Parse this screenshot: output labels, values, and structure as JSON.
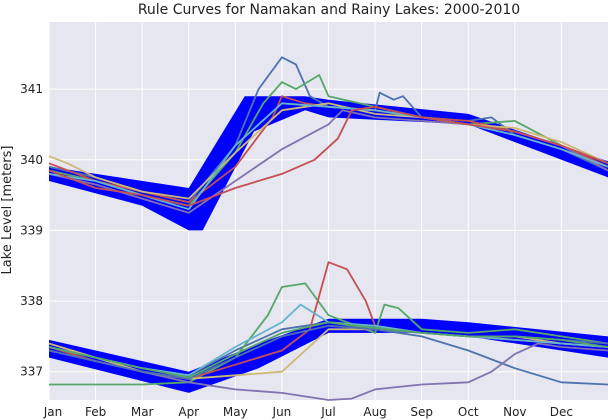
{
  "chart_data": {
    "type": "line",
    "title": "Rule Curves for Namakan and Rainy Lakes: 2000-2010",
    "xlabel": "",
    "ylabel": "Lake Level [meters]",
    "xlim": [
      0,
      12
    ],
    "ylim": [
      336.6,
      341.95
    ],
    "x_ticks": [
      {
        "label": "Jan",
        "x": 0
      },
      {
        "label": "Feb",
        "x": 1
      },
      {
        "label": "Mar",
        "x": 2
      },
      {
        "label": "Apr",
        "x": 3
      },
      {
        "label": "May",
        "x": 4
      },
      {
        "label": "Jun",
        "x": 5
      },
      {
        "label": "Jul",
        "x": 6
      },
      {
        "label": "Aug",
        "x": 7
      },
      {
        "label": "Sep",
        "x": 8
      },
      {
        "label": "Oct",
        "x": 9
      },
      {
        "label": "Nov",
        "x": 10
      },
      {
        "label": "Dec",
        "x": 11
      }
    ],
    "y_ticks": [
      {
        "label": "337",
        "y": 337
      },
      {
        "label": "338",
        "y": 338
      },
      {
        "label": "339",
        "y": 339
      },
      {
        "label": "340",
        "y": 340
      },
      {
        "label": "341",
        "y": 341
      }
    ],
    "grid": true,
    "background": "#e5e6ef",
    "band_color": "#0000ff",
    "bands": [
      {
        "upper": [
          [
            0,
            339.9
          ],
          [
            3,
            339.6
          ],
          [
            4.2,
            340.9
          ],
          [
            5.5,
            340.9
          ],
          [
            6,
            340.85
          ],
          [
            9,
            340.65
          ],
          [
            12,
            339.98
          ]
        ],
        "lower": [
          [
            0,
            339.7
          ],
          [
            2,
            339.35
          ],
          [
            3,
            339.0
          ],
          [
            3.3,
            339.0
          ],
          [
            4.4,
            340.4
          ],
          [
            5.5,
            340.7
          ],
          [
            6,
            340.6
          ],
          [
            9,
            340.5
          ],
          [
            12,
            339.75
          ]
        ]
      },
      {
        "upper": [
          [
            0,
            337.45
          ],
          [
            3,
            337.0
          ],
          [
            4.5,
            337.4
          ],
          [
            6,
            337.75
          ],
          [
            8,
            337.75
          ],
          [
            9,
            337.7
          ],
          [
            12,
            337.5
          ]
        ],
        "lower": [
          [
            0,
            337.2
          ],
          [
            3,
            336.7
          ],
          [
            4.5,
            337.05
          ],
          [
            6,
            337.55
          ],
          [
            8,
            337.55
          ],
          [
            9,
            337.5
          ],
          [
            12,
            337.2
          ]
        ]
      }
    ],
    "series": [
      {
        "color": "#4c72b0",
        "values": [
          [
            0,
            339.9
          ],
          [
            1,
            339.75
          ],
          [
            2,
            339.55
          ],
          [
            3,
            339.4
          ],
          [
            4,
            340.2
          ],
          [
            4.5,
            341.0
          ],
          [
            5,
            341.45
          ],
          [
            5.3,
            341.35
          ],
          [
            5.6,
            340.9
          ],
          [
            6,
            340.75
          ],
          [
            7,
            340.7
          ],
          [
            7.1,
            340.95
          ],
          [
            7.4,
            340.85
          ],
          [
            7.6,
            340.9
          ],
          [
            8,
            340.6
          ],
          [
            9,
            340.55
          ],
          [
            9.5,
            340.6
          ],
          [
            10,
            340.35
          ],
          [
            11,
            340.15
          ],
          [
            12,
            339.85
          ]
        ]
      },
      {
        "color": "#55a868",
        "values": [
          [
            0,
            339.85
          ],
          [
            1,
            339.7
          ],
          [
            2,
            339.5
          ],
          [
            3,
            339.35
          ],
          [
            4,
            340.1
          ],
          [
            4.6,
            340.8
          ],
          [
            5,
            341.1
          ],
          [
            5.3,
            341.0
          ],
          [
            5.8,
            341.2
          ],
          [
            6,
            340.9
          ],
          [
            7,
            340.75
          ],
          [
            8,
            340.6
          ],
          [
            9,
            340.5
          ],
          [
            10,
            340.55
          ],
          [
            11,
            340.2
          ],
          [
            12,
            339.9
          ]
        ]
      },
      {
        "color": "#c44e52",
        "values": [
          [
            0,
            339.95
          ],
          [
            1,
            339.7
          ],
          [
            2,
            339.55
          ],
          [
            3,
            339.4
          ],
          [
            4,
            339.9
          ],
          [
            4.8,
            340.6
          ],
          [
            5,
            340.9
          ],
          [
            5.5,
            340.8
          ],
          [
            6,
            340.75
          ],
          [
            7,
            340.7
          ],
          [
            8,
            340.6
          ],
          [
            9,
            340.55
          ],
          [
            10,
            340.4
          ],
          [
            11,
            340.2
          ],
          [
            12,
            339.9
          ]
        ]
      },
      {
        "color": "#8172b2",
        "values": [
          [
            0,
            339.8
          ],
          [
            1,
            339.65
          ],
          [
            2,
            339.45
          ],
          [
            3,
            339.25
          ],
          [
            4,
            339.7
          ],
          [
            5,
            340.15
          ],
          [
            6,
            340.5
          ],
          [
            6.3,
            340.7
          ],
          [
            7,
            340.6
          ],
          [
            8,
            340.55
          ],
          [
            9,
            340.5
          ],
          [
            10,
            340.4
          ],
          [
            11,
            340.2
          ],
          [
            12,
            339.85
          ]
        ]
      },
      {
        "color": "#ccb974",
        "values": [
          [
            0,
            340.05
          ],
          [
            0.4,
            339.95
          ],
          [
            1,
            339.75
          ],
          [
            2,
            339.55
          ],
          [
            3,
            339.45
          ],
          [
            4,
            340.1
          ],
          [
            5,
            340.7
          ],
          [
            6,
            340.8
          ],
          [
            7,
            340.65
          ],
          [
            8,
            340.6
          ],
          [
            9,
            340.5
          ],
          [
            10,
            340.45
          ],
          [
            11,
            340.25
          ],
          [
            12,
            339.95
          ]
        ]
      },
      {
        "color": "#64b5cd",
        "values": [
          [
            0,
            339.8
          ],
          [
            1,
            339.7
          ],
          [
            2,
            339.5
          ],
          [
            3,
            339.3
          ],
          [
            4,
            340.2
          ],
          [
            5,
            340.8
          ],
          [
            6,
            340.75
          ],
          [
            7,
            340.7
          ],
          [
            8,
            340.6
          ],
          [
            9,
            340.5
          ],
          [
            10,
            340.35
          ],
          [
            11,
            340.15
          ],
          [
            12,
            339.9
          ]
        ]
      },
      {
        "color": "#c44e52",
        "values": [
          [
            0,
            339.85
          ],
          [
            1,
            339.6
          ],
          [
            2,
            339.5
          ],
          [
            3,
            339.35
          ],
          [
            4,
            339.6
          ],
          [
            5,
            339.8
          ],
          [
            5.7,
            340.0
          ],
          [
            6.2,
            340.3
          ],
          [
            6.5,
            340.7
          ],
          [
            7,
            340.75
          ],
          [
            8,
            340.6
          ],
          [
            9,
            340.5
          ],
          [
            10,
            340.4
          ],
          [
            11,
            340.2
          ],
          [
            12,
            339.95
          ]
        ]
      },
      {
        "color": "#4c72b0",
        "values": [
          [
            0,
            337.35
          ],
          [
            1,
            337.2
          ],
          [
            2,
            337.05
          ],
          [
            3,
            336.95
          ],
          [
            4,
            337.3
          ],
          [
            5,
            337.6
          ],
          [
            6,
            337.7
          ],
          [
            7,
            337.6
          ],
          [
            8,
            337.5
          ],
          [
            9,
            337.3
          ],
          [
            10,
            337.05
          ],
          [
            11,
            336.85
          ],
          [
            12,
            336.82
          ]
        ]
      },
      {
        "color": "#55a868",
        "values": [
          [
            0,
            336.82
          ],
          [
            1,
            336.82
          ],
          [
            2,
            336.82
          ],
          [
            3,
            336.85
          ],
          [
            4,
            337.2
          ],
          [
            4.7,
            337.8
          ],
          [
            5,
            338.2
          ],
          [
            5.5,
            338.25
          ],
          [
            6,
            337.8
          ],
          [
            7,
            337.55
          ],
          [
            7.2,
            337.95
          ],
          [
            7.5,
            337.9
          ],
          [
            8,
            337.6
          ],
          [
            9,
            337.55
          ],
          [
            10,
            337.6
          ],
          [
            11,
            337.5
          ],
          [
            12,
            337.4
          ]
        ]
      },
      {
        "color": "#c44e52",
        "values": [
          [
            0,
            337.35
          ],
          [
            1,
            337.15
          ],
          [
            2,
            337.0
          ],
          [
            3,
            336.9
          ],
          [
            4,
            337.1
          ],
          [
            5,
            337.3
          ],
          [
            5.6,
            337.6
          ],
          [
            6,
            338.55
          ],
          [
            6.4,
            338.45
          ],
          [
            6.8,
            338.0
          ],
          [
            7,
            337.65
          ],
          [
            8,
            337.55
          ],
          [
            9,
            337.5
          ],
          [
            10,
            337.45
          ],
          [
            11,
            337.4
          ],
          [
            12,
            337.35
          ]
        ]
      },
      {
        "color": "#8172b2",
        "values": [
          [
            0,
            337.3
          ],
          [
            1,
            337.15
          ],
          [
            2,
            337.0
          ],
          [
            3,
            336.85
          ],
          [
            4,
            336.75
          ],
          [
            5,
            336.7
          ],
          [
            6,
            336.6
          ],
          [
            6.5,
            336.62
          ],
          [
            7,
            336.75
          ],
          [
            8,
            336.82
          ],
          [
            9,
            336.85
          ],
          [
            9.5,
            337.0
          ],
          [
            10,
            337.25
          ],
          [
            10.5,
            337.4
          ],
          [
            11,
            337.35
          ],
          [
            12,
            337.3
          ]
        ]
      },
      {
        "color": "#ccb974",
        "values": [
          [
            0,
            337.4
          ],
          [
            1,
            337.2
          ],
          [
            2,
            337.0
          ],
          [
            3,
            336.9
          ],
          [
            4,
            336.95
          ],
          [
            5,
            337.0
          ],
          [
            5.5,
            337.3
          ],
          [
            6,
            337.6
          ],
          [
            7,
            337.6
          ],
          [
            8,
            337.55
          ],
          [
            9,
            337.5
          ],
          [
            10,
            337.5
          ],
          [
            11,
            337.4
          ],
          [
            12,
            337.35
          ]
        ]
      },
      {
        "color": "#64b5cd",
        "values": [
          [
            0,
            337.35
          ],
          [
            1,
            337.2
          ],
          [
            2,
            337.05
          ],
          [
            3,
            336.95
          ],
          [
            4,
            337.35
          ],
          [
            5,
            337.7
          ],
          [
            5.4,
            337.95
          ],
          [
            6,
            337.7
          ],
          [
            7,
            337.65
          ],
          [
            8,
            337.55
          ],
          [
            9,
            337.5
          ],
          [
            10,
            337.45
          ],
          [
            11,
            337.4
          ],
          [
            12,
            337.35
          ]
        ]
      },
      {
        "color": "#4c72b0",
        "values": [
          [
            0,
            337.3
          ],
          [
            1,
            337.15
          ],
          [
            2,
            337.0
          ],
          [
            3,
            336.9
          ],
          [
            4,
            337.2
          ],
          [
            5,
            337.5
          ],
          [
            6,
            337.65
          ],
          [
            7,
            337.6
          ],
          [
            8,
            337.55
          ],
          [
            9,
            337.5
          ],
          [
            10,
            337.5
          ],
          [
            11,
            337.45
          ],
          [
            12,
            337.4
          ]
        ]
      },
      {
        "color": "#55a868",
        "values": [
          [
            0,
            337.35
          ],
          [
            1,
            337.2
          ],
          [
            2,
            337.05
          ],
          [
            3,
            336.92
          ],
          [
            4,
            337.25
          ],
          [
            5,
            337.55
          ],
          [
            6,
            337.7
          ],
          [
            7,
            337.62
          ],
          [
            8,
            337.55
          ],
          [
            9,
            337.5
          ],
          [
            10,
            337.5
          ],
          [
            11,
            337.45
          ],
          [
            12,
            337.35
          ]
        ]
      }
    ]
  }
}
